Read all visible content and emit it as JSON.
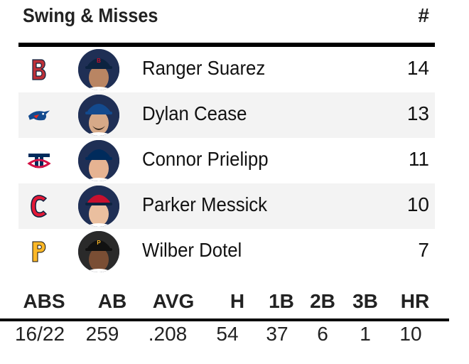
{
  "header": {
    "title": "Swing & Misses",
    "count_label": "#"
  },
  "players": [
    {
      "team": "BOS",
      "name": "Ranger Suarez",
      "count": "14",
      "team_color": "#bd3039",
      "cap_color": "#c8102e"
    },
    {
      "team": "TOR",
      "name": "Dylan Cease",
      "count": "13",
      "team_color": "#134a8e",
      "cap_color": "#134a8e"
    },
    {
      "team": "MIN",
      "name": "Connor Prielipp",
      "count": "11",
      "team_color": "#d31145",
      "cap_color": "#002b5c"
    },
    {
      "team": "CLE",
      "name": "Parker Messick",
      "count": "10",
      "team_color": "#e31937",
      "cap_color": "#c8102e"
    },
    {
      "team": "PIT",
      "name": "Wilber Dotel",
      "count": "7",
      "team_color": "#fdb827",
      "cap_color": "#111111"
    }
  ],
  "stats": {
    "headers": [
      "ABS",
      "AB",
      "AVG",
      "H",
      "1B",
      "2B",
      "3B",
      "HR"
    ],
    "values": [
      "16/22",
      "259",
      ".208",
      "54",
      "37",
      "6",
      "1",
      "10"
    ]
  }
}
